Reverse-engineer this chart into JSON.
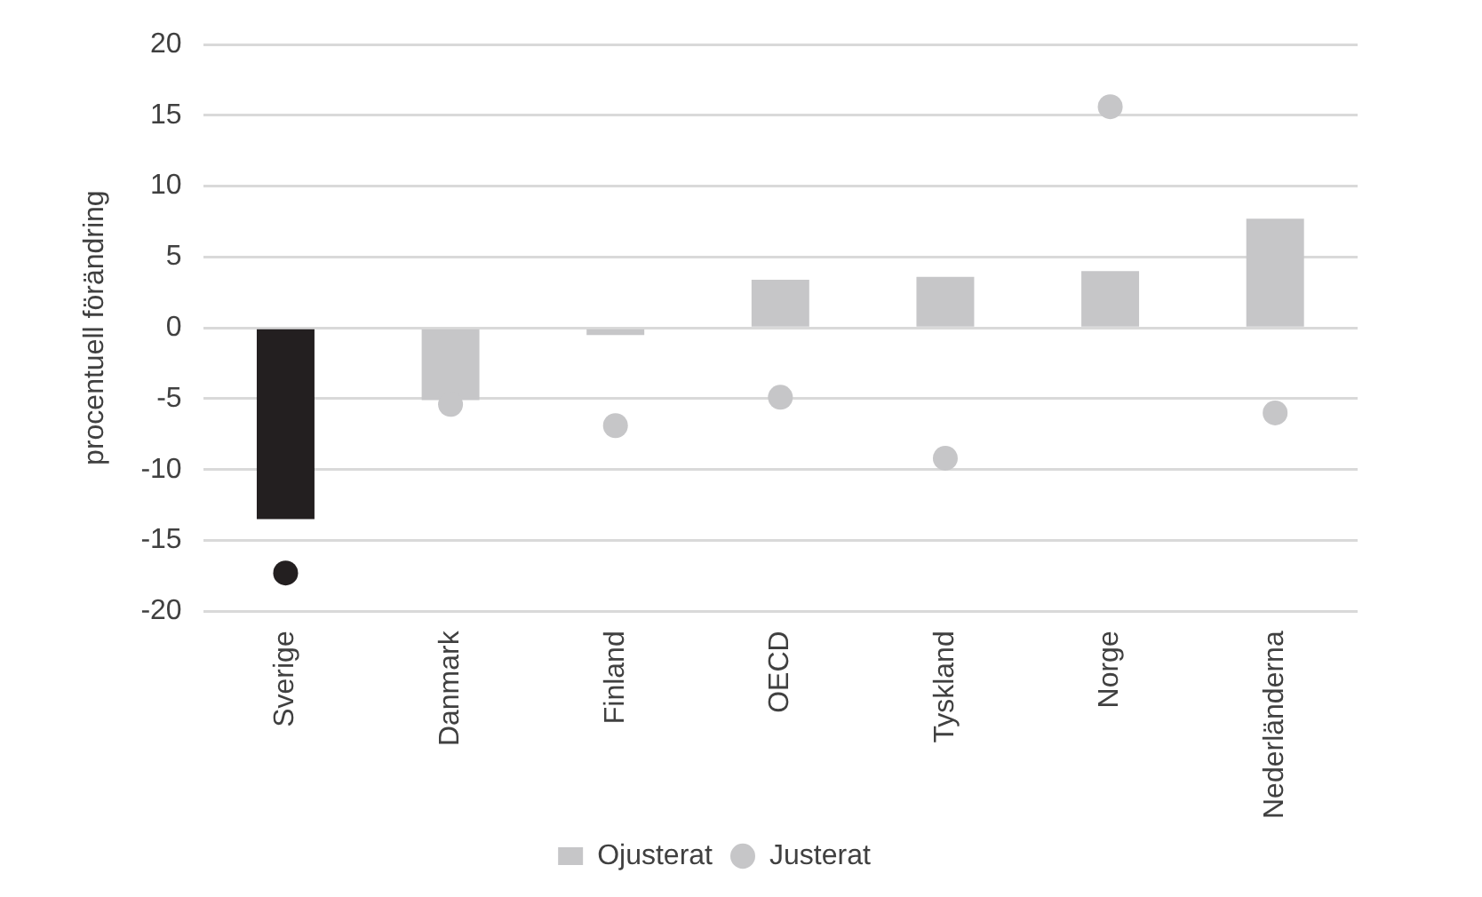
{
  "chart_data": {
    "type": "bar",
    "ylabel": "procentuell förändring",
    "categories": [
      "Sverige",
      "Danmark",
      "Finland",
      "OECD",
      "Tyskland",
      "Norge",
      "Nederländerna"
    ],
    "series": [
      {
        "name": "Ojusterat",
        "color": "#c6c6c8",
        "colors": [
          "#231f20",
          "#c6c6c8",
          "#c6c6c8",
          "#c6c6c8",
          "#c6c6c8",
          "#c6c6c8",
          "#c6c6c8"
        ],
        "values": [
          -13.5,
          -5.1,
          -0.5,
          3.4,
          3.6,
          4.0,
          7.7
        ]
      },
      {
        "name": "Justerat",
        "type": "scatter",
        "color": "#c6c6c8",
        "colors": [
          "#231f20",
          "#c6c6c8",
          "#c6c6c8",
          "#c6c6c8",
          "#c6c6c8",
          "#c6c6c8",
          "#c6c6c8"
        ],
        "x": [
          "Sverige",
          "Danmark",
          "Finland",
          "OECD",
          "Tyskland",
          "Norge",
          "Nederländerna"
        ],
        "values": [
          -17.3,
          -5.4,
          -6.9,
          -4.9,
          -9.2,
          15.6,
          -6.0
        ]
      }
    ],
    "ylim": [
      -20,
      20
    ],
    "yticks": [
      -20,
      -15,
      -10,
      -5,
      0,
      5,
      10,
      15,
      20
    ],
    "grid": "y",
    "legend": "bottom",
    "marker": "circle"
  }
}
